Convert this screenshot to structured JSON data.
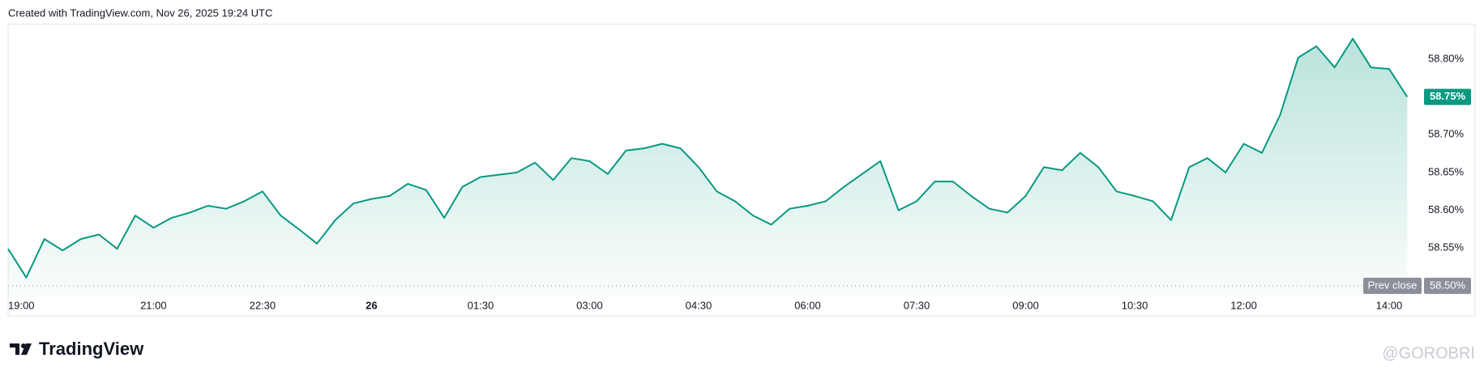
{
  "header": "Created with TradingView.com, Nov 26, 2025 19:24 UTC",
  "logo": "TradingView",
  "watermark": "@GOROBRI",
  "chart_data": {
    "type": "area",
    "color": "#089981",
    "categories": [
      "19:00",
      null,
      null,
      null,
      null,
      null,
      null,
      null,
      "21:00",
      null,
      null,
      null,
      null,
      null,
      "22:30",
      null,
      null,
      null,
      null,
      null,
      "26",
      null,
      null,
      null,
      null,
      null,
      "01:30",
      null,
      null,
      null,
      null,
      null,
      "03:00",
      null,
      null,
      null,
      null,
      null,
      "04:30",
      null,
      null,
      null,
      null,
      null,
      "06:00",
      null,
      null,
      null,
      null,
      null,
      "07:30",
      null,
      null,
      null,
      null,
      null,
      "09:00",
      null,
      null,
      null,
      null,
      null,
      "10:30",
      null,
      null,
      null,
      null,
      null,
      "12:00",
      null,
      null,
      null,
      null,
      null,
      null,
      null,
      "14:00",
      null
    ],
    "values": [
      58.549,
      58.511,
      58.562,
      58.547,
      58.562,
      58.568,
      58.549,
      58.593,
      58.577,
      58.59,
      58.597,
      58.606,
      58.602,
      58.612,
      58.625,
      58.593,
      58.575,
      58.556,
      58.587,
      58.609,
      58.615,
      58.619,
      58.635,
      58.627,
      58.59,
      58.631,
      58.644,
      58.647,
      58.65,
      58.663,
      58.64,
      58.669,
      58.665,
      58.648,
      58.679,
      58.682,
      58.688,
      58.682,
      58.657,
      58.625,
      58.612,
      58.593,
      58.581,
      58.602,
      58.606,
      58.612,
      58.631,
      58.648,
      58.665,
      58.6,
      58.612,
      58.638,
      58.638,
      58.619,
      58.602,
      58.597,
      58.619,
      58.657,
      58.653,
      58.676,
      58.657,
      58.625,
      58.619,
      58.612,
      58.587,
      58.657,
      58.669,
      58.65,
      58.688,
      58.676,
      58.726,
      58.802,
      58.817,
      58.789,
      58.827,
      58.789,
      58.787,
      58.75
    ],
    "ylim": [
      58.486,
      58.846
    ],
    "yticks": [
      {
        "value": 58.55,
        "label": "58.55%"
      },
      {
        "value": 58.6,
        "label": "58.60%"
      },
      {
        "value": 58.65,
        "label": "58.65%"
      },
      {
        "value": 58.7,
        "label": "58.70%"
      },
      {
        "value": 58.8,
        "label": "58.80%"
      }
    ],
    "last_price": {
      "value": 58.75,
      "label": "58.75%"
    },
    "prev_close": {
      "name": "Prev close",
      "value": 58.5,
      "label": "58.50%"
    }
  }
}
